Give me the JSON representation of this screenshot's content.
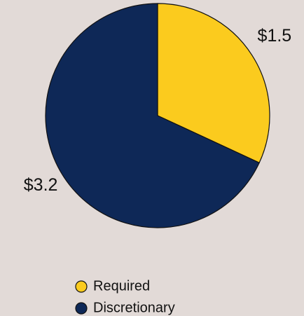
{
  "chart_data": {
    "type": "pie",
    "categories": [
      "Required",
      "Discretionary"
    ],
    "values": [
      1.5,
      3.2
    ],
    "value_labels": [
      "$1.5",
      "$3.2"
    ],
    "colors": [
      "#fbcb1e",
      "#0e2857"
    ]
  }
}
